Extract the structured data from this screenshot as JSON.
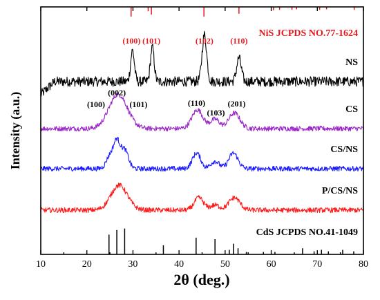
{
  "chart_data": {
    "type": "line",
    "xlabel": "2θ (deg.)",
    "ylabel": "Intensity (a.u.)",
    "xlim": [
      10,
      80
    ],
    "xticks": [
      10,
      20,
      30,
      40,
      50,
      60,
      70,
      80
    ],
    "yticks_shown": false,
    "legend": "labels at right end of each trace",
    "grid": false,
    "series": [
      {
        "name": "NS",
        "color": "#000000",
        "baseline": 100,
        "noise": 8,
        "rise": {
          "from": 10,
          "to": 13,
          "start": 40,
          "end": 100
        },
        "peaks": [
          {
            "x": 29.9,
            "h": 50,
            "w": 0.4
          },
          {
            "x": 34.2,
            "h": 55,
            "w": 0.4
          },
          {
            "x": 45.5,
            "h": 75,
            "w": 0.5
          },
          {
            "x": 53.0,
            "h": 38,
            "w": 0.5
          }
        ]
      },
      {
        "name": "CS",
        "color": "#9b26c8",
        "baseline": 55,
        "noise": 4,
        "peaks": [
          {
            "x": 26.8,
            "h": 55,
            "w": 2.0
          },
          {
            "x": 44.0,
            "h": 30,
            "w": 1.2
          },
          {
            "x": 47.8,
            "h": 15,
            "w": 1.0
          },
          {
            "x": 52.0,
            "h": 25,
            "w": 1.2
          }
        ]
      },
      {
        "name": "CS/NS",
        "color": "#1a1aff",
        "baseline": 28,
        "noise": 4,
        "peaks": [
          {
            "x": 25.0,
            "h": 20,
            "w": 0.8
          },
          {
            "x": 26.5,
            "h": 42,
            "w": 0.7
          },
          {
            "x": 28.2,
            "h": 30,
            "w": 0.8
          },
          {
            "x": 43.8,
            "h": 25,
            "w": 0.9
          },
          {
            "x": 47.8,
            "h": 12,
            "w": 0.9
          },
          {
            "x": 51.8,
            "h": 25,
            "w": 1.0
          }
        ]
      },
      {
        "name": "P/CS/NS",
        "color": "#ff1a1a",
        "baseline": 0,
        "noise": 4,
        "peaks": [
          {
            "x": 27.0,
            "h": 40,
            "w": 1.8
          },
          {
            "x": 44.3,
            "h": 20,
            "w": 1.0
          },
          {
            "x": 47.8,
            "h": 8,
            "w": 1.0
          },
          {
            "x": 52.0,
            "h": 20,
            "w": 1.2
          }
        ]
      }
    ],
    "references": [
      {
        "name": "NiS JCPDS NO.77-1624",
        "color": "#e8191e",
        "lines": [
          {
            "x": 29.6,
            "h": 1.0
          },
          {
            "x": 33.3,
            "h": 0.45
          },
          {
            "x": 34.0,
            "h": 0.8
          },
          {
            "x": 45.4,
            "h": 1.0
          },
          {
            "x": 53.0,
            "h": 0.7
          },
          {
            "x": 60.5,
            "h": 0.35
          },
          {
            "x": 61.8,
            "h": 0.3
          },
          {
            "x": 64.5,
            "h": 0.3
          },
          {
            "x": 65.5,
            "h": 0.25
          },
          {
            "x": 70.5,
            "h": 0.3
          },
          {
            "x": 72.0,
            "h": 0.25
          },
          {
            "x": 78.0,
            "h": 0.3
          }
        ],
        "labels": [
          {
            "text": "(100)",
            "x": 29.7
          },
          {
            "text": "(101)",
            "x": 34.0
          },
          {
            "text": "(102)",
            "x": 45.5
          },
          {
            "text": "(110)",
            "x": 53.0
          }
        ]
      },
      {
        "name": "CdS JCPDS NO.41-1049",
        "color": "#000000",
        "lines": [
          {
            "x": 24.8,
            "h": 0.65
          },
          {
            "x": 26.5,
            "h": 0.8
          },
          {
            "x": 28.2,
            "h": 0.85
          },
          {
            "x": 36.6,
            "h": 0.3
          },
          {
            "x": 43.7,
            "h": 0.55
          },
          {
            "x": 47.8,
            "h": 0.5
          },
          {
            "x": 50.9,
            "h": 0.15
          },
          {
            "x": 51.8,
            "h": 0.35
          },
          {
            "x": 52.8,
            "h": 0.2
          },
          {
            "x": 54.6,
            "h": 0.08
          },
          {
            "x": 58.3,
            "h": 0.08
          },
          {
            "x": 60.8,
            "h": 0.08
          },
          {
            "x": 66.8,
            "h": 0.2
          },
          {
            "x": 69.3,
            "h": 0.1
          },
          {
            "x": 70.9,
            "h": 0.15
          },
          {
            "x": 72.4,
            "h": 0.1
          },
          {
            "x": 75.5,
            "h": 0.15
          },
          {
            "x": 77.9,
            "h": 0.1
          }
        ]
      }
    ],
    "annotations": [
      {
        "text": "(002)",
        "x": 26.5,
        "series": "CS",
        "color": "#000000"
      },
      {
        "text": "(100)",
        "x": 22.0,
        "series": "CS",
        "color": "#000000"
      },
      {
        "text": "(101)",
        "x": 31.2,
        "series": "CS",
        "color": "#000000"
      },
      {
        "text": "(110)",
        "x": 43.8,
        "series": "CS",
        "color": "#000000"
      },
      {
        "text": "(103)",
        "x": 48.0,
        "series": "CS",
        "color": "#000000"
      },
      {
        "text": "(201)",
        "x": 52.5,
        "series": "CS",
        "color": "#000000"
      }
    ]
  }
}
